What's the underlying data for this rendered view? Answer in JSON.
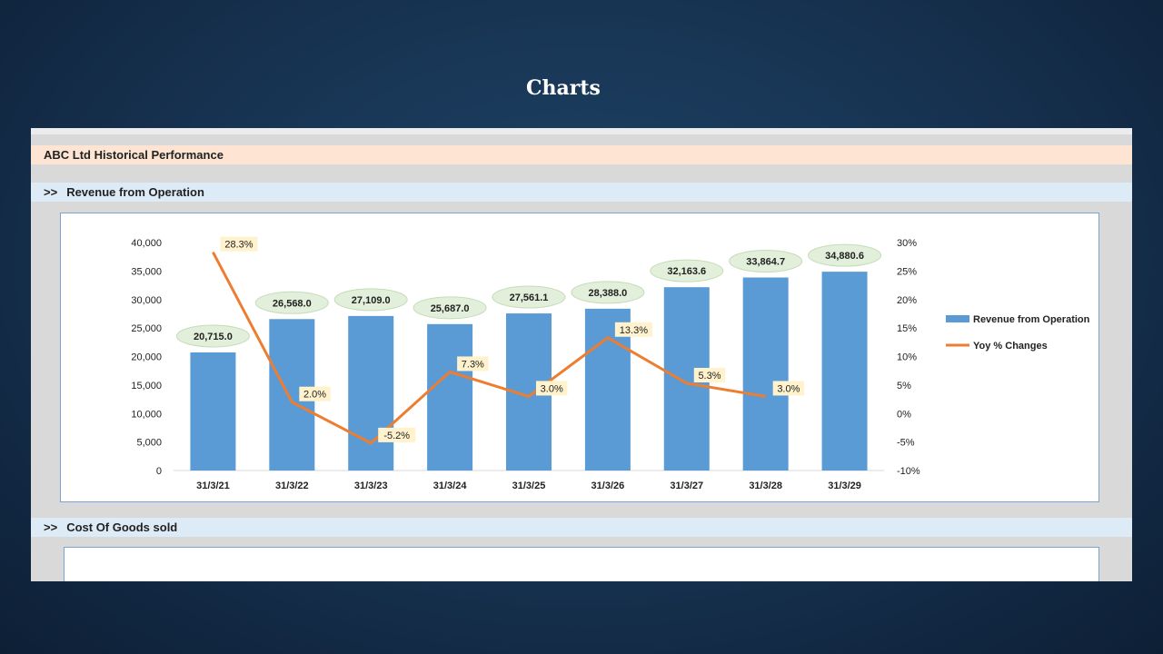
{
  "slide": {
    "title": "Charts"
  },
  "sheet": {
    "header": "ABC Ltd Historical Performance",
    "section1": {
      "marker": ">>",
      "title": "Revenue from Operation"
    },
    "section2": {
      "marker": ">>",
      "title": "Cost Of Goods sold"
    }
  },
  "colors": {
    "bar": "#5b9bd5",
    "line": "#ed7d31",
    "bar_label_bg": "#e2efda",
    "line_label_bg": "#fff2cc"
  },
  "chart_data": {
    "type": "bar",
    "categories": [
      "31/3/21",
      "31/3/22",
      "31/3/23",
      "31/3/24",
      "31/3/25",
      "31/3/26",
      "31/3/27",
      "31/3/28",
      "31/3/29"
    ],
    "series": [
      {
        "name": "Revenue from Operation",
        "type": "bar",
        "axis": "left",
        "values": [
          20715.0,
          26568.0,
          27109.0,
          25687.0,
          27561.1,
          28388.0,
          32163.6,
          33864.7,
          34880.6
        ],
        "labels": [
          "20,715.0",
          "26,568.0",
          "27,109.0",
          "25,687.0",
          "27,561.1",
          "28,388.0",
          "32,163.6",
          "33,864.7",
          "34,880.6"
        ]
      },
      {
        "name": "Yoy % Changes",
        "type": "line",
        "axis": "right",
        "values": [
          28.3,
          2.0,
          -5.2,
          7.3,
          3.0,
          13.3,
          5.3,
          3.0,
          null
        ],
        "labels": [
          "28.3%",
          "2.0%",
          "-5.2%",
          "7.3%",
          "3.0%",
          "13.3%",
          "5.3%",
          "3.0%",
          ""
        ]
      }
    ],
    "y_left": {
      "min": 0,
      "max": 40000,
      "ticks": [
        "0",
        "5,000",
        "10,000",
        "15,000",
        "20,000",
        "25,000",
        "30,000",
        "35,000",
        "40,000"
      ]
    },
    "y_right": {
      "min": -10,
      "max": 30,
      "ticks": [
        "-10%",
        "-5%",
        "0%",
        "5%",
        "10%",
        "15%",
        "20%",
        "25%",
        "30%"
      ]
    },
    "legend": {
      "position": "right",
      "entries": [
        "Revenue from Operation",
        "Yoy % Changes"
      ]
    },
    "grid": false
  }
}
